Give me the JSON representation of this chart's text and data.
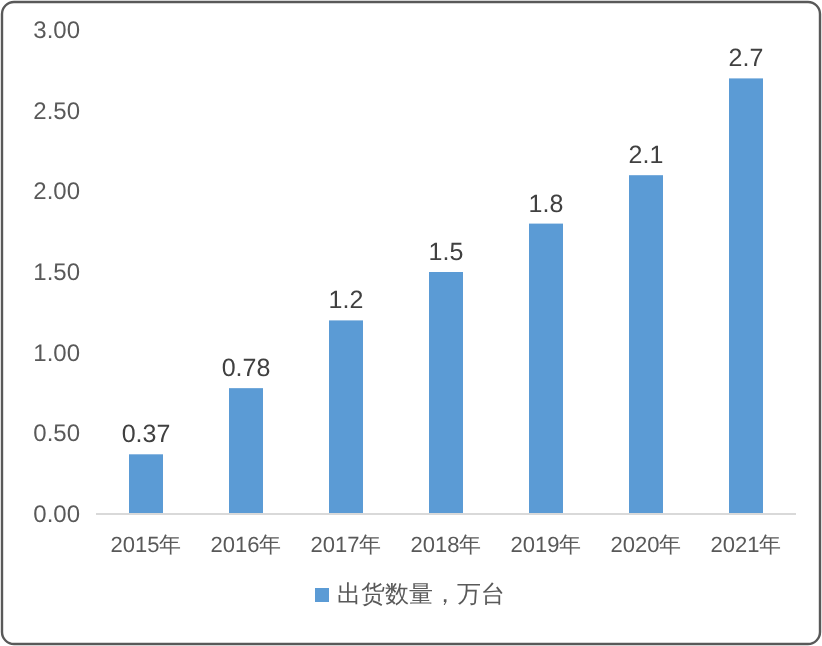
{
  "chart_data": {
    "type": "bar",
    "categories": [
      "2015年",
      "2016年",
      "2017年",
      "2018年",
      "2019年",
      "2020年",
      "2021年"
    ],
    "series": [
      {
        "name": "出货数量，万台",
        "color": "#5b9bd5",
        "values": [
          0.37,
          0.78,
          1.2,
          1.5,
          1.8,
          2.1,
          2.7
        ]
      }
    ],
    "ylim": [
      0,
      3
    ],
    "yticks": [
      {
        "value": 0,
        "label": "0.00"
      },
      {
        "value": 0.5,
        "label": "0.50"
      },
      {
        "value": 1,
        "label": "1.00"
      },
      {
        "value": 1.5,
        "label": "1.50"
      },
      {
        "value": 2,
        "label": "2.00"
      },
      {
        "value": 2.5,
        "label": "2.50"
      },
      {
        "value": 3,
        "label": "3.00"
      }
    ],
    "data_labels": true,
    "grid": false,
    "legend": "bottom"
  }
}
